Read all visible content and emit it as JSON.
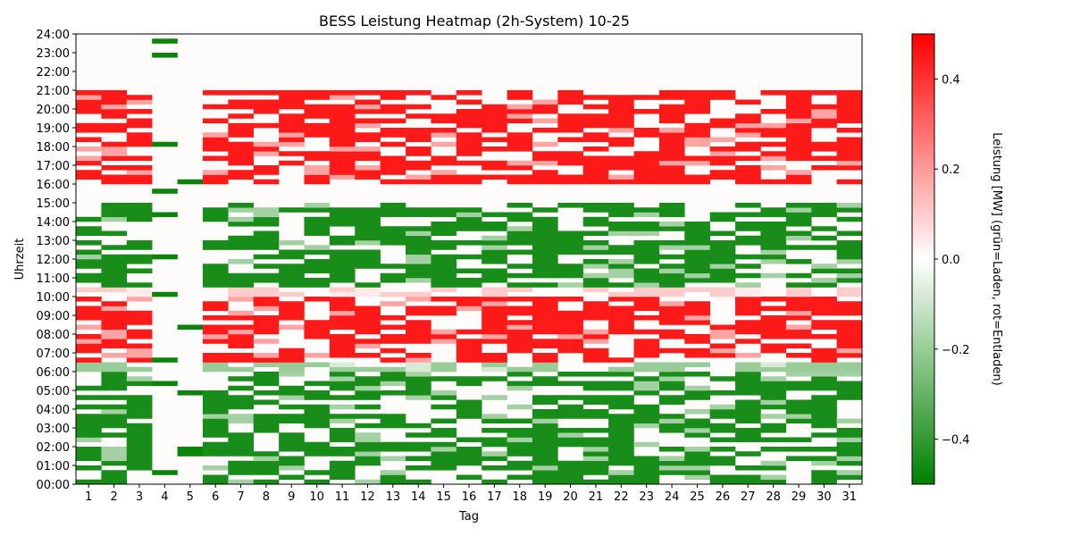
{
  "chart_data": {
    "type": "heatmap",
    "title": "BESS Leistung Heatmap (2h-System) 10-25",
    "xlabel": "Tag",
    "ylabel": "Uhrzeit",
    "colorbar_label": "Leistung [MW] (grün=Laden, rot=Entladen)",
    "colorbar_range": [
      -0.5,
      0.5
    ],
    "colorbar_ticks": [
      "−0.4",
      "−0.2",
      "0.0",
      "0.2",
      "0.4"
    ],
    "colorbar_tick_values": [
      -0.4,
      -0.2,
      0.0,
      0.2,
      0.4
    ],
    "colormap": [
      "#008000",
      "#ffffff",
      "#ff0000"
    ],
    "x_categories": [
      "1",
      "2",
      "3",
      "4",
      "5",
      "6",
      "7",
      "8",
      "9",
      "10",
      "11",
      "12",
      "13",
      "14",
      "15",
      "16",
      "17",
      "18",
      "19",
      "20",
      "21",
      "22",
      "23",
      "24",
      "25",
      "26",
      "27",
      "28",
      "29",
      "30",
      "31"
    ],
    "y_tick_labels": [
      "00:00",
      "01:00",
      "02:00",
      "03:00",
      "04:00",
      "05:00",
      "06:00",
      "07:00",
      "08:00",
      "09:00",
      "10:00",
      "11:00",
      "12:00",
      "13:00",
      "14:00",
      "15:00",
      "16:00",
      "17:00",
      "18:00",
      "19:00",
      "20:00",
      "21:00",
      "22:00",
      "23:00",
      "24:00"
    ],
    "resolution": "15 min",
    "dominant_pattern": {
      "charging_hours": "00:00–06:00 and 10:00–15:00 (approx −0.5 MW)",
      "discharging_hours": "06:30–10:00 and 16:00–21:00 (approx +0.5 MW)"
    }
  }
}
